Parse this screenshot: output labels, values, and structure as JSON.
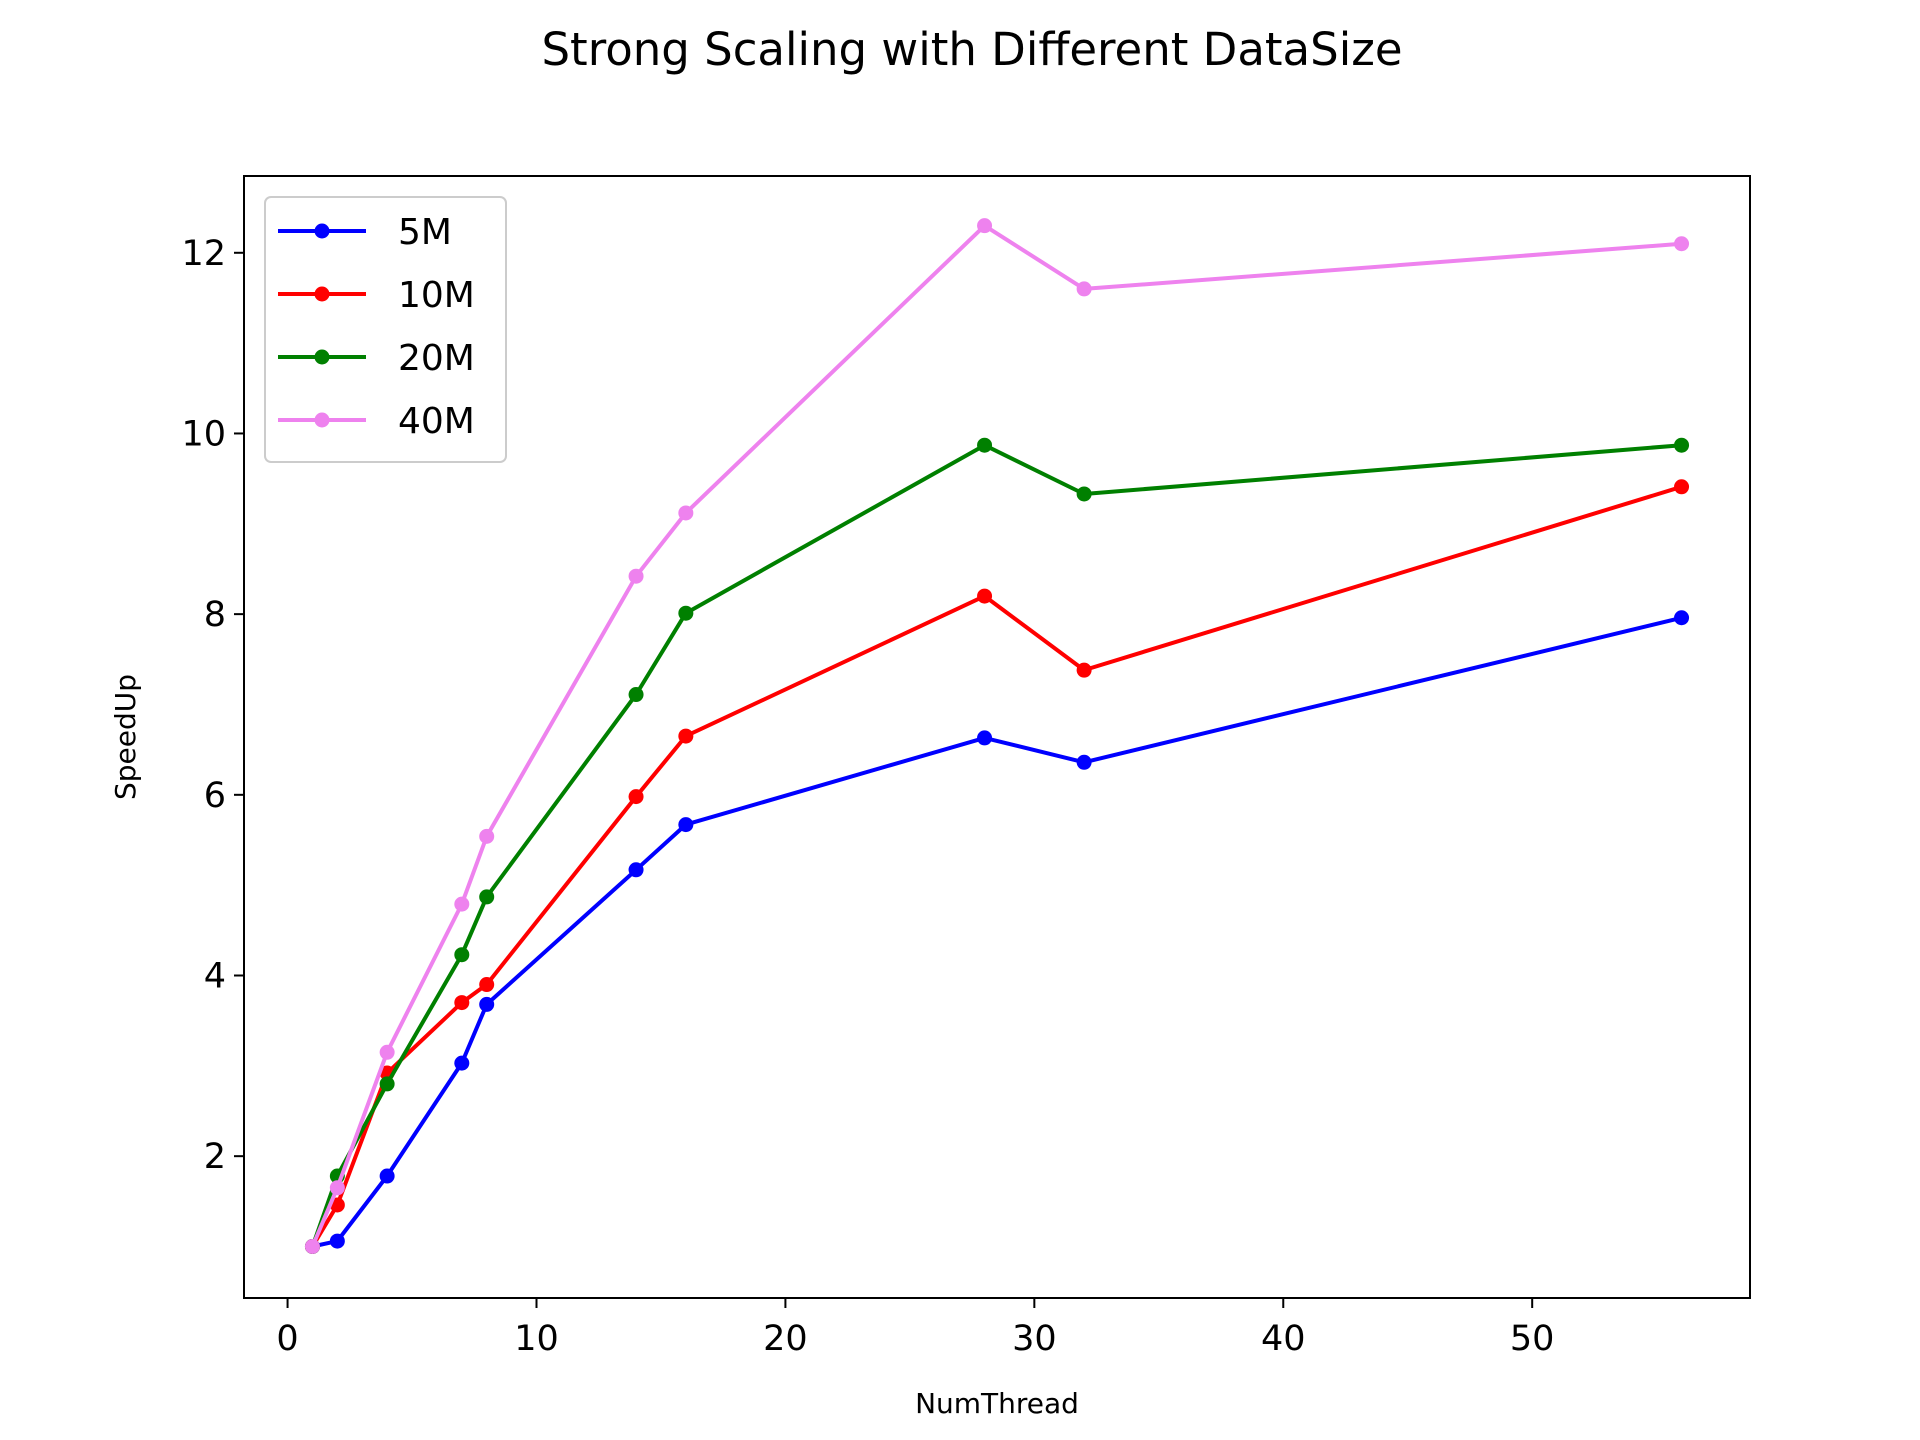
{
  "chart_data": {
    "type": "line",
    "title": "Strong Scaling with Different DataSize",
    "xlabel": "NumThread",
    "ylabel": "SpeedUp",
    "x": [
      1,
      2,
      4,
      7,
      8,
      14,
      16,
      28,
      32,
      56
    ],
    "xlim": [
      -1.75,
      58.75
    ],
    "ylim": [
      0.43,
      12.85
    ],
    "xticks": [
      0,
      10,
      20,
      30,
      40,
      50
    ],
    "yticks": [
      2,
      4,
      6,
      8,
      10,
      12
    ],
    "grid": false,
    "legend_position": "upper left",
    "series": [
      {
        "name": "5M",
        "color": "#0000ff",
        "values": [
          1.0,
          1.06,
          1.78,
          3.03,
          3.68,
          5.17,
          5.67,
          6.63,
          6.36,
          7.96
        ]
      },
      {
        "name": "10M",
        "color": "#ff0000",
        "values": [
          1.0,
          1.46,
          2.92,
          3.7,
          3.9,
          5.98,
          6.65,
          8.2,
          7.38,
          9.41
        ]
      },
      {
        "name": "20M",
        "color": "#008000",
        "values": [
          1.0,
          1.78,
          2.8,
          4.23,
          4.87,
          7.11,
          8.01,
          9.87,
          9.33,
          9.87
        ]
      },
      {
        "name": "40M",
        "color": "#ee82ee",
        "values": [
          1.0,
          1.65,
          3.15,
          4.79,
          5.54,
          8.42,
          9.12,
          12.3,
          11.6,
          12.1
        ]
      }
    ]
  }
}
